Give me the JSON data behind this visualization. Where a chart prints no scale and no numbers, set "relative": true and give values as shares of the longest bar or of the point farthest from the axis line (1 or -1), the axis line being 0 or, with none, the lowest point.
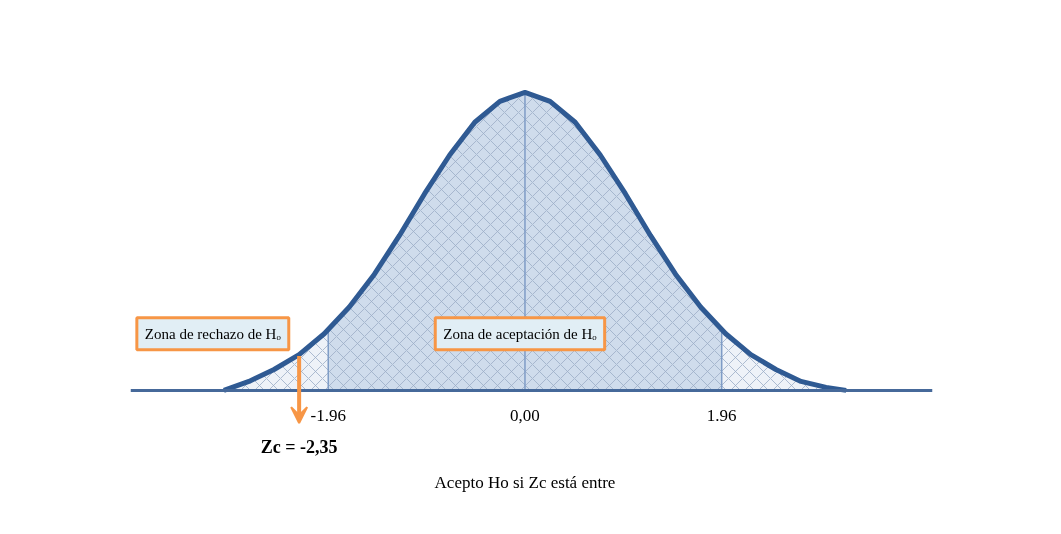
{
  "chart_data": {
    "type": "area",
    "relative": true,
    "x": [
      -3.0,
      -2.75,
      -2.5,
      -2.25,
      -2.0,
      -1.75,
      -1.5,
      -1.25,
      -1.0,
      -0.75,
      -0.5,
      -0.25,
      0,
      0.25,
      0.5,
      0.75,
      1.0,
      1.25,
      1.5,
      1.75,
      2.0,
      2.25,
      2.5,
      2.75,
      3.0,
      3.2
    ],
    "series": [
      {
        "type": "line",
        "color": "#2f5a93",
        "values": [
          0,
          0.03,
          0.07,
          0.12,
          0.19,
          0.28,
          0.39,
          0.52,
          0.66,
          0.79,
          0.9,
          0.97,
          1,
          0.97,
          0.9,
          0.79,
          0.66,
          0.52,
          0.39,
          0.28,
          0.19,
          0.12,
          0.07,
          0.03,
          0.01,
          0
        ]
      },
      {
        "color": "#eef2f8",
        "x": [
          -3.0,
          -2.75,
          -2.5,
          -2.25,
          -2.0,
          -1.96
        ],
        "values": [
          0,
          0.03,
          0.07,
          0.12,
          0.19,
          0.2
        ]
      },
      {
        "color": "#cfdcec",
        "x": [
          -1.96,
          -1.75,
          -1.5,
          -1.25,
          -1.0,
          -0.75,
          -0.5,
          -0.25,
          0,
          0.25,
          0.5,
          0.75,
          1.0,
          1.25,
          1.5,
          1.75,
          1.96
        ],
        "values": [
          0.2,
          0.28,
          0.39,
          0.52,
          0.66,
          0.79,
          0.9,
          0.97,
          1,
          0.97,
          0.9,
          0.79,
          0.66,
          0.52,
          0.39,
          0.28,
          0.2
        ]
      },
      {
        "color": "#eef2f8",
        "x": [
          1.96,
          2.0,
          2.25,
          2.5,
          2.75,
          3.0,
          3.2
        ],
        "values": [
          0.2,
          0.19,
          0.12,
          0.07,
          0.03,
          0.01,
          0
        ]
      }
    ],
    "xlim": [
      -3.93,
      4.06
    ],
    "xticks": [
      -1.96,
      {
        "value": 0,
        "label": "0,00"
      },
      1.96
    ],
    "tick_labels": "x",
    "grid": false,
    "ref_lines": [
      {
        "axis": "x",
        "value": -1.96,
        "color": "#7f9cc6"
      },
      {
        "axis": "x",
        "value": 0,
        "color": "#7f9cc6"
      },
      {
        "axis": "x",
        "value": 1.96,
        "color": "#7f9cc6"
      }
    ],
    "annotations": [
      "Zona de rechazo de Hₒ",
      "Zona de aceptación de Hₒ",
      "Zc = -2,35",
      "Acepto Ho si Zc está entre"
    ]
  }
}
